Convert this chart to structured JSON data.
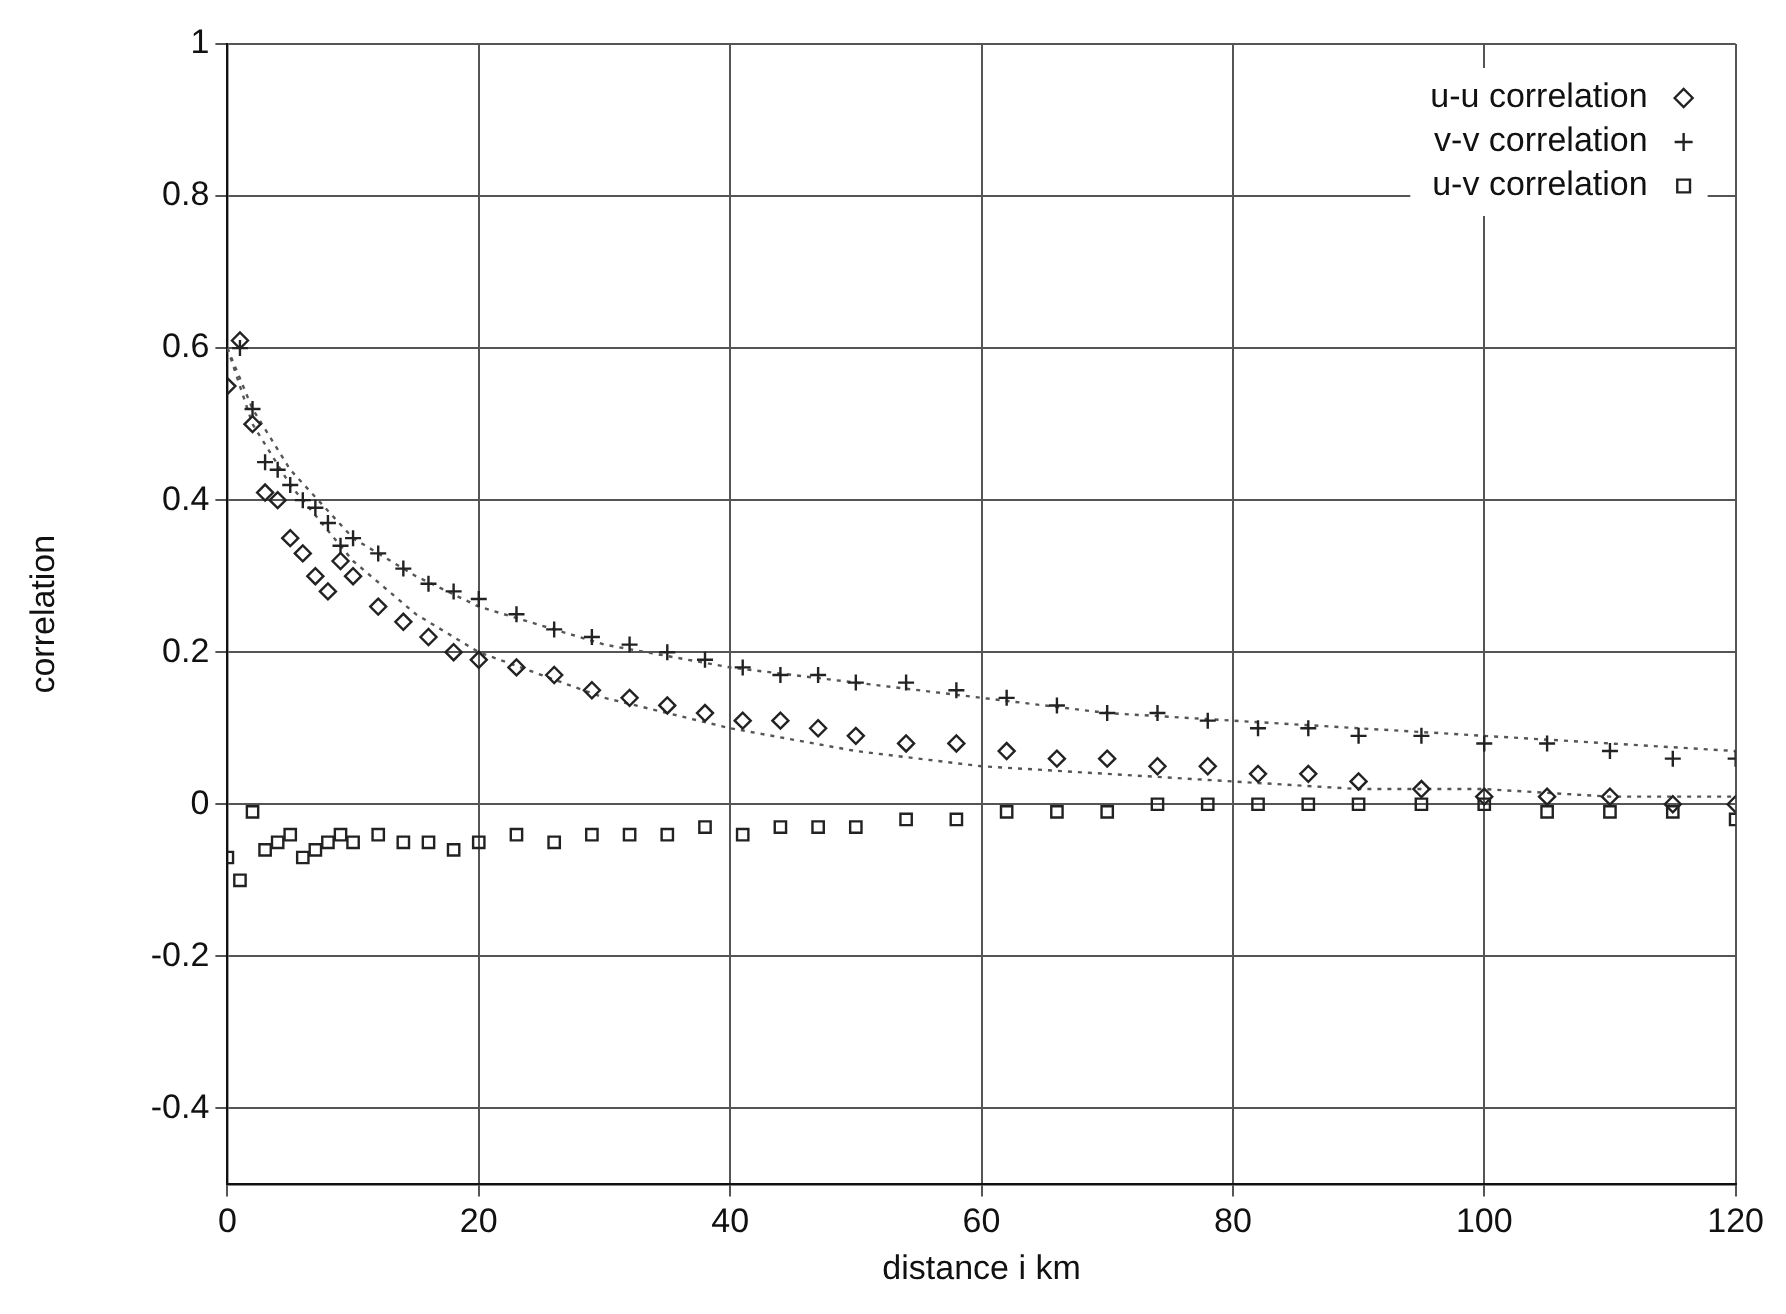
{
  "chart_data": {
    "type": "scatter",
    "xlabel": "distance i km",
    "ylabel": "correlation",
    "xlim": [
      0,
      120
    ],
    "xticks": [
      0,
      20,
      40,
      60,
      80,
      100,
      120
    ],
    "ylim": [
      -0.5,
      1
    ],
    "yticks": [
      -0.4,
      -0.2,
      0,
      0.2,
      0.4,
      0.6,
      0.8,
      1
    ],
    "grid": true,
    "legend": "top right",
    "x": [
      0,
      1,
      2,
      3,
      4,
      5,
      6,
      7,
      8,
      9,
      10,
      12,
      14,
      16,
      18,
      20,
      23,
      26,
      29,
      32,
      35,
      38,
      41,
      44,
      47,
      50,
      54,
      58,
      62,
      66,
      70,
      74,
      78,
      82,
      86,
      90,
      95,
      100,
      105,
      110,
      115,
      120
    ],
    "series": [
      {
        "name": "u-u correlation",
        "color": "#222222",
        "marker": "diamond",
        "values": [
          0.55,
          0.61,
          0.5,
          0.41,
          0.4,
          0.35,
          0.33,
          0.3,
          0.28,
          0.32,
          0.3,
          0.26,
          0.24,
          0.22,
          0.2,
          0.19,
          0.18,
          0.17,
          0.15,
          0.14,
          0.13,
          0.12,
          0.11,
          0.11,
          0.1,
          0.09,
          0.08,
          0.08,
          0.07,
          0.06,
          0.06,
          0.05,
          0.05,
          0.04,
          0.04,
          0.03,
          0.02,
          0.01,
          0.01,
          0.01,
          0,
          0
        ]
      },
      {
        "name": "v-v correlation",
        "color": "#222222",
        "marker": "cross",
        "values": [
          null,
          0.6,
          0.52,
          0.45,
          0.44,
          0.42,
          0.4,
          0.39,
          0.37,
          0.34,
          0.35,
          0.33,
          0.31,
          0.29,
          0.28,
          0.27,
          0.25,
          0.23,
          0.22,
          0.21,
          0.2,
          0.19,
          0.18,
          0.17,
          0.17,
          0.16,
          0.16,
          0.15,
          0.14,
          0.13,
          0.12,
          0.12,
          0.11,
          0.1,
          0.1,
          0.09,
          0.09,
          0.08,
          0.08,
          0.07,
          0.06,
          0.06
        ]
      },
      {
        "name": "u-v correlation",
        "color": "#222222",
        "marker": "square",
        "values": [
          -0.07,
          -0.1,
          -0.01,
          -0.06,
          -0.05,
          -0.04,
          -0.07,
          -0.06,
          -0.05,
          -0.04,
          -0.05,
          -0.04,
          -0.05,
          -0.05,
          -0.06,
          -0.05,
          -0.04,
          -0.05,
          -0.04,
          -0.04,
          -0.04,
          -0.03,
          -0.04,
          -0.03,
          -0.03,
          -0.03,
          -0.02,
          -0.02,
          -0.01,
          -0.01,
          -0.01,
          0,
          0,
          0,
          0,
          0,
          0,
          0,
          -0.01,
          -0.01,
          -0.01,
          -0.02
        ]
      },
      {
        "type": "line",
        "color": "#555555",
        "line_style": "dotted",
        "x": [
          0,
          2,
          5,
          10,
          15,
          20,
          30,
          40,
          50,
          60,
          70,
          80,
          90,
          100,
          110,
          120
        ],
        "values": [
          0.6,
          0.5,
          0.42,
          0.32,
          0.25,
          0.2,
          0.14,
          0.1,
          0.07,
          0.05,
          0.04,
          0.03,
          0.02,
          0.02,
          0.01,
          0.01
        ]
      },
      {
        "type": "line",
        "color": "#555555",
        "line_style": "dotted",
        "x": [
          0,
          2,
          5,
          10,
          15,
          20,
          30,
          40,
          50,
          60,
          70,
          80,
          90,
          100,
          110,
          120
        ],
        "values": [
          0.6,
          0.52,
          0.44,
          0.35,
          0.3,
          0.26,
          0.21,
          0.18,
          0.16,
          0.14,
          0.12,
          0.11,
          0.1,
          0.09,
          0.08,
          0.07
        ]
      }
    ]
  }
}
